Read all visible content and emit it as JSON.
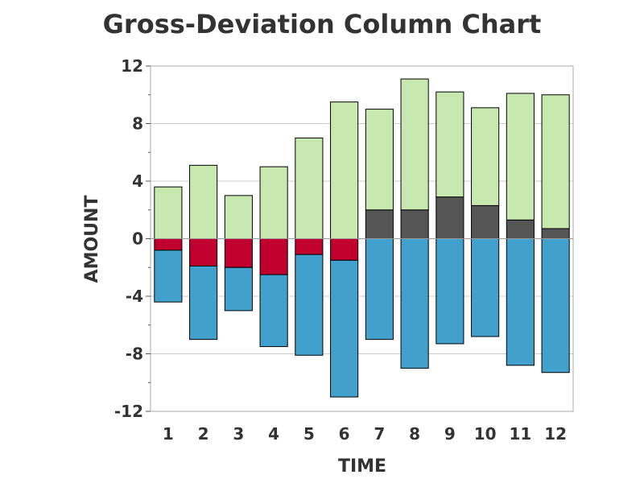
{
  "chart_data": {
    "type": "bar",
    "stacked": true,
    "title": "Gross-Deviation Column Chart",
    "xlabel": "TIME",
    "ylabel": "AMOUNT",
    "categories": [
      "1",
      "2",
      "3",
      "4",
      "5",
      "6",
      "7",
      "8",
      "9",
      "10",
      "11",
      "12"
    ],
    "ylim": [
      -12,
      12
    ],
    "yticks": [
      -12,
      -8,
      -4,
      0,
      4,
      8,
      12
    ],
    "yticks_minor": [
      -10,
      -6,
      -2,
      2,
      6,
      10
    ],
    "ytick_labels": [
      "-12",
      "-8",
      "-4",
      "0",
      "4",
      "8",
      "12"
    ],
    "grid": true,
    "legend": "none",
    "series": [
      {
        "values": [
          0,
          0,
          0,
          0,
          0,
          0,
          2.0,
          2.0,
          2.9,
          2.3,
          1.3,
          0.7
        ],
        "color": "#555555",
        "direction": "positive"
      },
      {
        "values": [
          3.6,
          5.1,
          3.0,
          5.0,
          7.0,
          9.5,
          7.0,
          9.1,
          7.3,
          6.8,
          8.8,
          9.3
        ],
        "color": "#c7e9b0",
        "direction": "positive"
      },
      {
        "values": [
          -0.8,
          -1.9,
          -2.0,
          -2.5,
          -1.1,
          -1.5,
          0,
          0,
          0,
          0,
          0,
          0
        ],
        "color": "#c2002f",
        "direction": "negative"
      },
      {
        "values": [
          -3.6,
          -5.1,
          -3.0,
          -5.0,
          -7.0,
          -9.5,
          -7.0,
          -9.0,
          -7.3,
          -6.8,
          -8.8,
          -9.3
        ],
        "color": "#41a1cc",
        "direction": "negative"
      }
    ],
    "colors": {
      "gridline": "#cccccc",
      "zeroline": "#999999",
      "frame": "#aaaaaa",
      "bar_outline": "#000000"
    }
  }
}
